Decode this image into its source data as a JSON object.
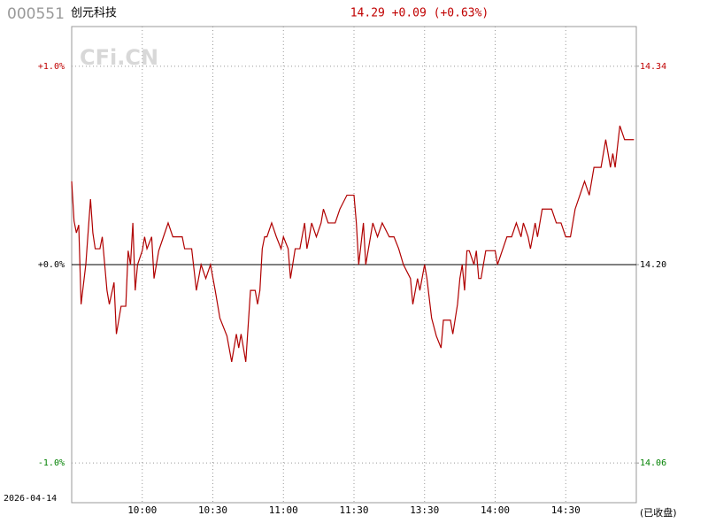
{
  "chart_data": {
    "type": "line",
    "code": "000551",
    "name": "创元科技",
    "quote": "14.29 +0.09 (+0.63%)",
    "watermark": "CFi.CN",
    "date": "2026-04-14",
    "status": "(已收盘)",
    "color": "#b00000",
    "xlim": [
      0,
      240
    ],
    "xticks": [
      {
        "value": 30,
        "label": "10:00"
      },
      {
        "value": 60,
        "label": "10:30"
      },
      {
        "value": 90,
        "label": "11:00"
      },
      {
        "value": 120,
        "label": "11:30"
      },
      {
        "value": 150,
        "label": "13:30"
      },
      {
        "value": 180,
        "label": "14:00"
      },
      {
        "value": 210,
        "label": "14:30"
      }
    ],
    "ylim": [
      -1.2,
      1.2
    ],
    "yticks": [
      {
        "value": -1,
        "label": "-1.0%"
      },
      {
        "value": 0,
        "label": "+0.0%"
      },
      {
        "value": 1,
        "label": "+1.0%"
      }
    ],
    "y2lim": [
      14.032,
      14.368
    ],
    "y2ticks": [
      14.06,
      {
        "value": 14.2,
        "label": "14.20"
      },
      14.34
    ],
    "tick_colors": [
      "#008000",
      "#000000",
      "#c00000"
    ],
    "grid": true,
    "x": [
      0,
      1,
      2,
      3,
      4,
      6,
      8,
      9,
      10,
      12,
      13,
      15,
      16,
      18,
      19,
      21,
      23,
      24,
      25,
      26,
      27,
      28,
      30,
      31,
      32,
      34,
      35,
      36,
      37,
      39,
      41,
      43,
      47,
      48,
      51,
      53,
      55,
      57,
      59,
      61,
      63,
      66,
      68,
      70,
      71,
      72,
      74,
      76,
      78,
      79,
      80,
      81,
      82,
      83,
      85,
      87,
      89,
      90,
      92,
      93,
      95,
      97,
      99,
      100,
      101,
      102,
      104,
      106,
      107,
      109,
      112,
      114,
      117,
      120,
      121,
      122,
      124,
      125,
      127,
      128,
      130,
      132,
      135,
      137,
      139,
      141,
      144,
      145,
      147,
      148,
      150,
      151,
      153,
      155,
      157,
      158,
      161,
      162,
      164,
      165,
      166,
      167,
      168,
      169,
      171,
      172,
      173,
      174,
      176,
      177,
      180,
      181,
      183,
      185,
      187,
      189,
      191,
      192,
      194,
      195,
      197,
      198,
      200,
      202,
      204,
      206,
      208,
      210,
      212,
      214,
      216,
      218,
      220,
      222,
      225,
      227,
      229,
      230,
      231,
      233,
      235,
      239
    ],
    "values": [
      0.42,
      0.22,
      0.16,
      0.2,
      -0.2,
      0.0,
      0.33,
      0.16,
      0.08,
      0.08,
      0.14,
      -0.13,
      -0.2,
      -0.09,
      -0.35,
      -0.21,
      -0.21,
      0.07,
      0.0,
      0.21,
      -0.13,
      0.0,
      0.07,
      0.14,
      0.08,
      0.14,
      -0.07,
      0.0,
      0.07,
      0.14,
      0.21,
      0.14,
      0.14,
      0.08,
      0.08,
      -0.13,
      0.0,
      -0.07,
      0.0,
      -0.13,
      -0.27,
      -0.36,
      -0.49,
      -0.35,
      -0.42,
      -0.35,
      -0.49,
      -0.13,
      -0.13,
      -0.2,
      -0.13,
      0.08,
      0.14,
      0.14,
      0.21,
      0.14,
      0.08,
      0.14,
      0.08,
      -0.07,
      0.08,
      0.08,
      0.21,
      0.08,
      0.14,
      0.21,
      0.14,
      0.21,
      0.28,
      0.21,
      0.21,
      0.28,
      0.35,
      0.35,
      0.21,
      0.0,
      0.21,
      0.0,
      0.14,
      0.21,
      0.14,
      0.21,
      0.14,
      0.14,
      0.08,
      0.0,
      -0.07,
      -0.2,
      -0.07,
      -0.13,
      0.0,
      -0.07,
      -0.27,
      -0.36,
      -0.42,
      -0.28,
      -0.28,
      -0.35,
      -0.2,
      -0.07,
      0.0,
      -0.13,
      0.07,
      0.07,
      0.0,
      0.07,
      -0.07,
      -0.07,
      0.07,
      0.07,
      0.07,
      0.0,
      0.07,
      0.14,
      0.14,
      0.21,
      0.14,
      0.21,
      0.14,
      0.08,
      0.21,
      0.14,
      0.28,
      0.28,
      0.28,
      0.21,
      0.21,
      0.14,
      0.14,
      0.28,
      0.35,
      0.42,
      0.35,
      0.49,
      0.49,
      0.63,
      0.49,
      0.56,
      0.49,
      0.7,
      0.63,
      0.63
    ]
  }
}
